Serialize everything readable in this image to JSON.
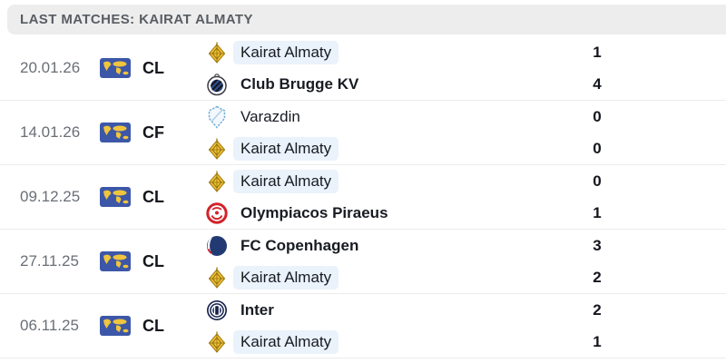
{
  "header": {
    "title": "LAST MATCHES: KAIRAT ALMATY"
  },
  "colors": {
    "header_bg": "#ededed",
    "highlight_blue": "#eaf2fb",
    "flag_blue": "#3c57a8",
    "flag_map_yellow": "#f0c43c",
    "text_dark": "#14161d",
    "text_gray": "#6a6f76"
  },
  "icons": {
    "competition_flag": "world-map-flag-icon",
    "team_logos": [
      "kairat-almaty-logo",
      "club-brugge-logo",
      "varazdin-logo",
      "olympiacos-logo",
      "fc-copenhagen-logo",
      "inter-logo"
    ]
  },
  "matches": [
    {
      "date": "20.01.26",
      "competition": "CL",
      "teams": [
        {
          "name": "Kairat Almaty",
          "score": "1",
          "bold": false,
          "highlight": true,
          "logo": "kairat-almaty-logo"
        },
        {
          "name": "Club Brugge KV",
          "score": "4",
          "bold": true,
          "highlight": false,
          "logo": "club-brugge-logo"
        }
      ]
    },
    {
      "date": "14.01.26",
      "competition": "CF",
      "teams": [
        {
          "name": "Varazdin",
          "score": "0",
          "bold": false,
          "highlight": false,
          "logo": "varazdin-logo"
        },
        {
          "name": "Kairat Almaty",
          "score": "0",
          "bold": false,
          "highlight": true,
          "logo": "kairat-almaty-logo"
        }
      ]
    },
    {
      "date": "09.12.25",
      "competition": "CL",
      "teams": [
        {
          "name": "Kairat Almaty",
          "score": "0",
          "bold": false,
          "highlight": true,
          "logo": "kairat-almaty-logo"
        },
        {
          "name": "Olympiacos Piraeus",
          "score": "1",
          "bold": true,
          "highlight": false,
          "logo": "olympiacos-logo"
        }
      ]
    },
    {
      "date": "27.11.25",
      "competition": "CL",
      "teams": [
        {
          "name": "FC Copenhagen",
          "score": "3",
          "bold": true,
          "highlight": false,
          "logo": "fc-copenhagen-logo"
        },
        {
          "name": "Kairat Almaty",
          "score": "2",
          "bold": false,
          "highlight": true,
          "logo": "kairat-almaty-logo"
        }
      ]
    },
    {
      "date": "06.11.25",
      "competition": "CL",
      "teams": [
        {
          "name": "Inter",
          "score": "2",
          "bold": true,
          "highlight": false,
          "logo": "inter-logo"
        },
        {
          "name": "Kairat Almaty",
          "score": "1",
          "bold": false,
          "highlight": true,
          "logo": "kairat-almaty-logo"
        }
      ]
    }
  ]
}
